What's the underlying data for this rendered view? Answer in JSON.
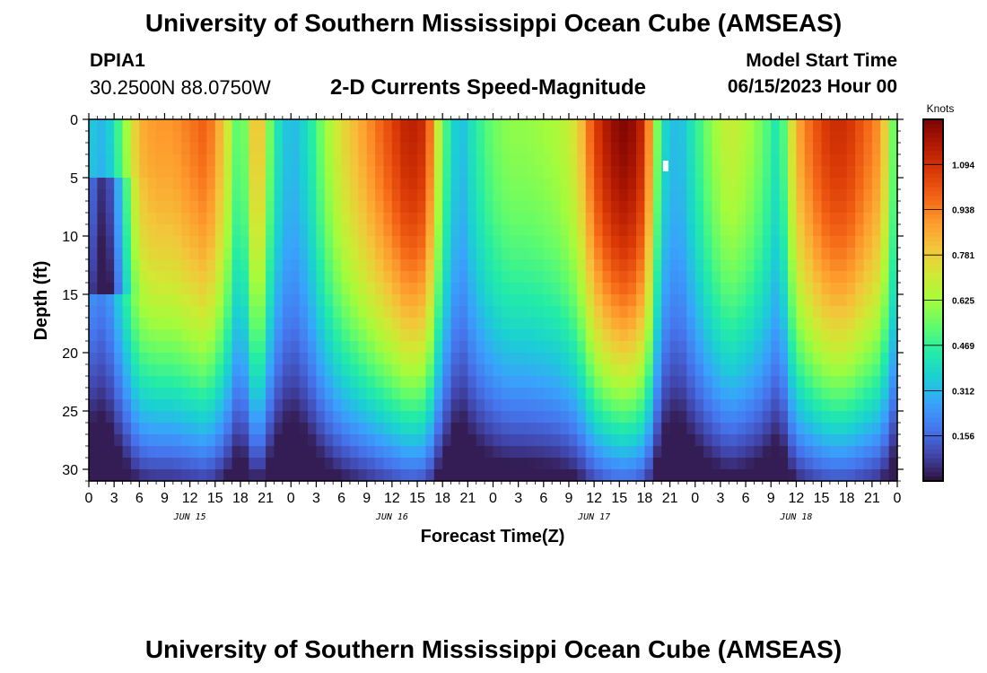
{
  "page": {
    "title": "University of Southern Mississippi Ocean Cube (AMSEAS)",
    "station_id": "DPIA1",
    "station_coords": "30.2500N  88.0750W",
    "chart_title": "2-D Currents Speed-Magnitude",
    "model_start_label": "Model Start Time",
    "model_start_value": "06/15/2023 Hour 00",
    "footer_title": "University of Southern Mississippi Ocean Cube (AMSEAS)"
  },
  "colors": {
    "ramp": [
      "#30123b",
      "#4145ab",
      "#4675ed",
      "#39a2fc",
      "#1bcfd4",
      "#24eca6",
      "#61fc6c",
      "#a4fc3b",
      "#d1e834",
      "#f3c63a",
      "#fe9b2d",
      "#f36315",
      "#d93806",
      "#b11901",
      "#7a0402"
    ]
  },
  "chart_data": {
    "type": "heatmap",
    "title": "2-D Currents Speed-Magnitude",
    "xlabel": "Forecast Time(Z)",
    "ylabel": "Depth (ft)",
    "x_range_hours": [
      0,
      96
    ],
    "y_range_ft": [
      0,
      31
    ],
    "y_inverted": true,
    "x_tick_labels": [
      "0",
      "3",
      "6",
      "9",
      "12",
      "15",
      "18",
      "21",
      "0",
      "3",
      "6",
      "9",
      "12",
      "15",
      "18",
      "21",
      "0",
      "3",
      "6",
      "9",
      "12",
      "15",
      "18",
      "21",
      "0",
      "3",
      "6",
      "9",
      "12",
      "15",
      "18",
      "21",
      "0"
    ],
    "y_ticks": [
      0,
      5,
      10,
      15,
      20,
      25,
      30
    ],
    "y_tick_labels": [
      "0",
      "5",
      "10",
      "15",
      "20",
      "25",
      "30"
    ],
    "date_labels": [
      {
        "label": "JUN 15",
        "hour": 12
      },
      {
        "label": "JUN 16",
        "hour": 36
      },
      {
        "label": "JUN 17",
        "hour": 60
      },
      {
        "label": "JUN 18",
        "hour": 84
      }
    ],
    "colorbar": {
      "unit": "Knots",
      "min": 0.0,
      "max": 1.25,
      "ticks": [
        0.156,
        0.312,
        0.469,
        0.625,
        0.781,
        0.938,
        1.094
      ],
      "tick_labels": [
        "0.156",
        "0.312",
        "0.469",
        "0.625",
        "0.781",
        "0.938",
        "1.094"
      ]
    },
    "time_series_hours": [
      0,
      2,
      4,
      6,
      8,
      10,
      12,
      14,
      16,
      18,
      20,
      22,
      24,
      26,
      28,
      30,
      32,
      34,
      36,
      38,
      40,
      42,
      44,
      46,
      48,
      50,
      52,
      54,
      56,
      58,
      60,
      62,
      64,
      66,
      68,
      70,
      72,
      74,
      76,
      78,
      80,
      82,
      84,
      86,
      88,
      90,
      92,
      94,
      96
    ],
    "surface_speed_kn": [
      0.35,
      0.3,
      0.55,
      0.85,
      0.9,
      0.9,
      0.95,
      1.0,
      0.8,
      0.45,
      0.9,
      0.45,
      0.3,
      0.4,
      0.6,
      0.75,
      0.85,
      0.95,
      1.05,
      1.15,
      1.1,
      0.55,
      0.3,
      0.45,
      0.55,
      0.6,
      0.6,
      0.62,
      0.65,
      0.75,
      1.05,
      1.2,
      1.25,
      1.1,
      0.4,
      0.3,
      0.45,
      0.6,
      0.7,
      0.65,
      0.55,
      0.4,
      0.85,
      1.0,
      1.1,
      1.1,
      1.0,
      0.9,
      0.45
    ],
    "maximum_marker": {
      "hour": 68.5,
      "depth_ft": 4
    }
  }
}
